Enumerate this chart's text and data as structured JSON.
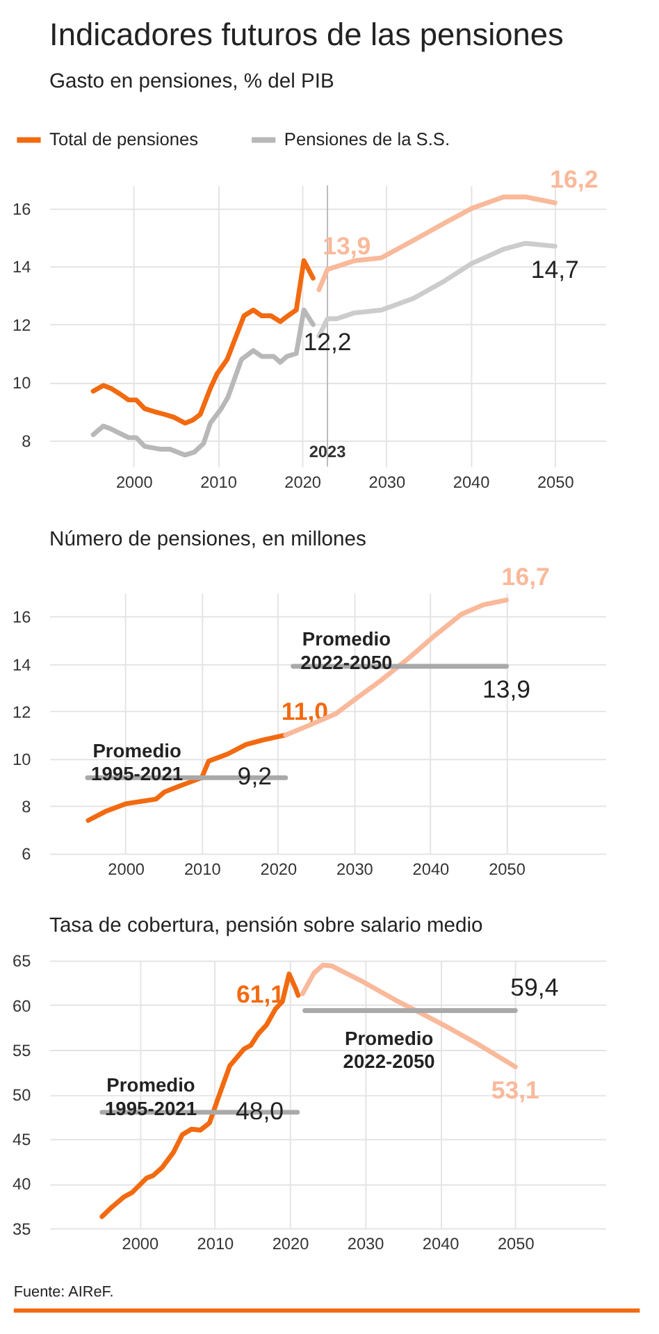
{
  "chart_data": [
    {
      "type": "line",
      "title": "Indicadores futuros de las pensiones",
      "subtitle": "Gasto en pensiones, % del PIB",
      "xlim": [
        1990,
        2056
      ],
      "ylim": [
        7.1,
        16.8
      ],
      "xticks": [
        2000,
        2010,
        2020,
        2030,
        2040,
        2050
      ],
      "yticks": [
        8,
        10,
        12,
        14,
        16
      ],
      "grid": true,
      "legend": "top left",
      "line_style": "solid",
      "ref_lines": [
        {
          "axis": "x",
          "value": 2023,
          "label": "2023",
          "color": "#bbbbbb"
        }
      ],
      "series": [
        {
          "name": "Total de pensiones",
          "color": "#f26a10",
          "x": [
            1995.2,
            1996.4,
            1997.3,
            1998.4,
            1999.4,
            2000.3,
            2001.3,
            2002.4,
            2003.7,
            2004.8,
            2006.1,
            2007,
            2007.9,
            2009.1,
            2009.9,
            2011.1,
            2012.3,
            2013.1,
            2014.2,
            2015.2,
            2016.3,
            2017.4,
            2018.3,
            2019.3,
            2020.2,
            2021.3
          ],
          "values": [
            9.7,
            9.9,
            9.8,
            9.6,
            9.4,
            9.4,
            9.1,
            9.0,
            8.9,
            8.8,
            8.6,
            8.7,
            8.9,
            9.8,
            10.3,
            10.8,
            11.7,
            12.3,
            12.5,
            12.3,
            12.3,
            12.1,
            12.3,
            12.5,
            14.2,
            13.6
          ]
        },
        {
          "name": "Pensiones de la S.S.",
          "color": "#b8b8b8",
          "x": [
            1995.2,
            1996.4,
            1997.3,
            1999.4,
            2000.3,
            2001.3,
            2003.2,
            2004.3,
            2006.1,
            2007.2,
            2008.3,
            2009.1,
            2010.4,
            2011.2,
            2012.8,
            2014.2,
            2015.2,
            2016.6,
            2017.4,
            2018.2,
            2019.3,
            2020.2,
            2021.3
          ],
          "values": [
            8.2,
            8.5,
            8.4,
            8.1,
            8.1,
            7.8,
            7.7,
            7.7,
            7.5,
            7.6,
            7.9,
            8.6,
            9.1,
            9.5,
            10.8,
            11.1,
            10.9,
            10.9,
            10.7,
            10.9,
            11.0,
            12.5,
            12.0
          ]
        },
        {
          "color": "#f9b99a",
          "x": [
            2022,
            2023,
            2024.1,
            2026.2,
            2029.4,
            2033.2,
            2036.9,
            2040.1,
            2043.9,
            2046.5,
            2050
          ],
          "values": [
            13.2,
            13.9,
            14.0,
            14.2,
            14.3,
            14.9,
            15.5,
            16.0,
            16.4,
            16.4,
            16.2
          ],
          "value_labels": [
            null,
            "13,9",
            null,
            null,
            null,
            null,
            null,
            null,
            null,
            null,
            "16,2"
          ]
        },
        {
          "color": "#cccccc",
          "x": [
            2022,
            2023,
            2024.1,
            2026.2,
            2029.4,
            2033.2,
            2036.9,
            2040.1,
            2043.9,
            2046.5,
            2050
          ],
          "values": [
            11.6,
            12.2,
            12.2,
            12.4,
            12.5,
            12.9,
            13.5,
            14.1,
            14.6,
            14.8,
            14.7
          ],
          "value_labels": [
            null,
            "12,2",
            null,
            null,
            null,
            null,
            null,
            null,
            null,
            null,
            "14,7"
          ]
        }
      ]
    },
    {
      "type": "line",
      "title": "Número de pensiones, en millones",
      "xlim": [
        1990,
        2063
      ],
      "ylim": [
        6,
        17
      ],
      "xticks": [
        2000,
        2010,
        2020,
        2030,
        2040,
        2050
      ],
      "yticks": [
        6,
        8,
        10,
        12,
        14,
        16
      ],
      "grid": true,
      "line_style": "solid",
      "annotations": [
        "Promedio\n1995-2021",
        "Promedio\n2022-2050"
      ],
      "series": [
        {
          "color": "#f26a10",
          "x": [
            1995.1,
            1997.5,
            2000,
            2004,
            2005.1,
            2007.5,
            2010,
            2010.9,
            2013.4,
            2015.8,
            2018.1,
            2021
          ],
          "values": [
            7.4,
            7.8,
            8.1,
            8.3,
            8.6,
            8.9,
            9.2,
            9.9,
            10.2,
            10.6,
            10.8,
            11.0
          ],
          "value_labels": [
            null,
            null,
            null,
            null,
            null,
            null,
            null,
            null,
            null,
            null,
            null,
            "11,0"
          ]
        },
        {
          "color": "#f9b99a",
          "x": [
            2021,
            2024,
            2027.6,
            2030.5,
            2033.5,
            2037,
            2040.6,
            2044.1,
            2047,
            2050
          ],
          "values": [
            11.0,
            11.4,
            11.9,
            12.6,
            13.3,
            14.2,
            15.2,
            16.1,
            16.5,
            16.7
          ],
          "value_labels": [
            null,
            null,
            null,
            null,
            null,
            null,
            null,
            null,
            null,
            "16,7"
          ]
        },
        {
          "color": "#a9a9a9",
          "x": [
            1995,
            2021
          ],
          "values": [
            9.2,
            9.2
          ],
          "value_labels": [
            null,
            "9,2"
          ]
        },
        {
          "color": "#a9a9a9",
          "x": [
            2022,
            2050
          ],
          "values": [
            13.9,
            13.9
          ],
          "value_labels": [
            null,
            "13,9"
          ]
        }
      ]
    },
    {
      "type": "line",
      "title": "Tasa de cobertura, pensión sobre salario medio",
      "xlim": [
        1988,
        2062
      ],
      "ylim": [
        35,
        65
      ],
      "xticks": [
        2000,
        2010,
        2020,
        2030,
        2040,
        2050
      ],
      "yticks": [
        35,
        40,
        45,
        50,
        55,
        60,
        65
      ],
      "grid": true,
      "line_style": "solid",
      "annotations": [
        "Promedio\n1995-2021",
        "Promedio\n2022-2050",
        "Fuente: AIReF."
      ],
      "series": [
        {
          "color": "#f26a10",
          "x": [
            1995,
            1996.1,
            1997.9,
            1999,
            2000.9,
            2001.8,
            2003,
            2004.5,
            2005.7,
            2006.9,
            2008.1,
            2009.3,
            2010.5,
            2012,
            2013.9,
            2014.8,
            2015.8,
            2016.9,
            2018.1,
            2019,
            2019.9,
            2020.8,
            2021.1
          ],
          "values": [
            36.3,
            37.2,
            38.5,
            39.0,
            40.6,
            40.9,
            41.8,
            43.5,
            45.5,
            46.1,
            46.0,
            46.8,
            49.7,
            53.2,
            55.1,
            55.5,
            56.8,
            57.8,
            59.6,
            60.4,
            63.5,
            61.8,
            61.1
          ],
          "value_labels": [
            null,
            null,
            null,
            null,
            null,
            null,
            null,
            null,
            null,
            null,
            null,
            null,
            null,
            null,
            null,
            null,
            null,
            null,
            null,
            null,
            null,
            null,
            "61,1"
          ]
        },
        {
          "color": "#f9b99a",
          "x": [
            2021.7,
            2023.2,
            2024.4,
            2025.6,
            2029.8,
            2034,
            2037.7,
            2041.3,
            2044.9,
            2050
          ],
          "values": [
            61.3,
            63.6,
            64.5,
            64.4,
            62.6,
            60.6,
            59.0,
            57.4,
            55.7,
            53.1
          ],
          "value_labels": [
            null,
            null,
            null,
            null,
            null,
            null,
            null,
            null,
            null,
            "53,1"
          ]
        },
        {
          "color": "#a9a9a9",
          "x": [
            1995,
            2021
          ],
          "values": [
            48.0,
            48.0
          ],
          "value_labels": [
            null,
            "48,0"
          ]
        },
        {
          "color": "#a9a9a9",
          "x": [
            2022,
            2050
          ],
          "values": [
            59.4,
            59.4
          ],
          "value_labels": [
            null,
            "59,4"
          ]
        }
      ]
    }
  ]
}
